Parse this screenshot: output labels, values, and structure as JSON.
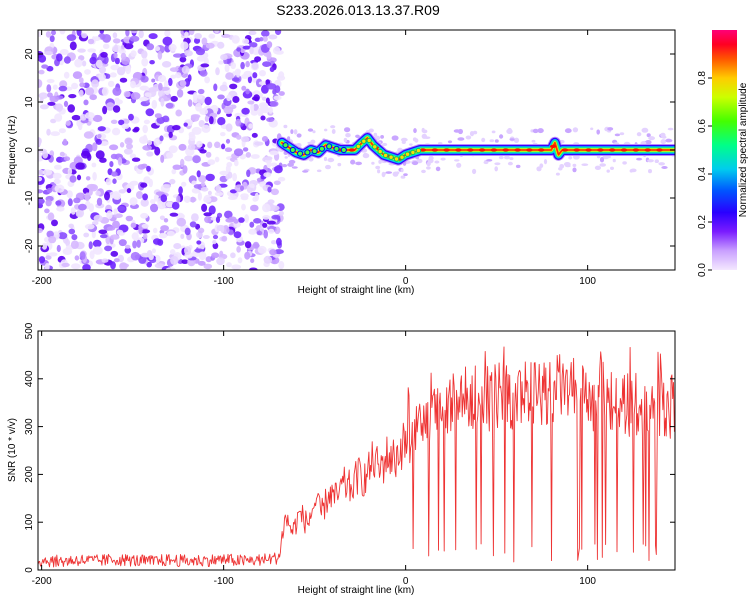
{
  "figure": {
    "title": "S233.2026.013.13.37.R09"
  },
  "chart_data": [
    {
      "type": "heatmap",
      "xlabel": "Height of straight line (km)",
      "ylabel": "Frequency (Hz)",
      "xlim": [
        -202,
        148
      ],
      "ylim": [
        -25,
        25
      ],
      "x_ticks": [
        -200,
        -100,
        0,
        100
      ],
      "y_ticks": [
        -20,
        -10,
        0,
        10,
        20
      ],
      "colorbar": {
        "label": "Normalized spectral amplitude",
        "range": [
          0,
          1
        ],
        "ticks": [
          0.0,
          0.2,
          0.4,
          0.6,
          0.8
        ],
        "colormap": [
          "#ffffff",
          "#cc99ff",
          "#6600ff",
          "#0000ff",
          "#00ccff",
          "#00ff66",
          "#66ff00",
          "#ffff00",
          "#ff6600",
          "#ff0000",
          "#ff0066",
          "#ff0099"
        ]
      },
      "noise_region_x": [
        -202,
        -68
      ],
      "ridge": {
        "x": [
          -68,
          -64,
          -60,
          -56,
          -52,
          -48,
          -44,
          -40,
          -36,
          -32,
          -28,
          -24,
          -21,
          -18,
          -15,
          -12,
          -8,
          -4,
          0,
          4,
          8,
          14,
          20,
          30,
          40,
          50,
          60,
          70,
          80,
          82,
          84,
          86,
          90,
          100,
          110,
          120,
          130,
          140,
          148
        ],
        "y": [
          1.5,
          0.5,
          -0.5,
          -1.0,
          0.0,
          -0.5,
          1.0,
          0.5,
          0.0,
          0.0,
          0.0,
          1.5,
          2.5,
          1.0,
          0.0,
          -1.0,
          -1.5,
          -2.0,
          -1.0,
          -0.5,
          0.0,
          0.0,
          0.0,
          0.0,
          0.0,
          0.0,
          0.0,
          0.0,
          0.0,
          1.5,
          -1.0,
          0.0,
          0.0,
          0.0,
          0.0,
          0.0,
          0.0,
          0.0,
          0.0
        ]
      }
    },
    {
      "type": "line",
      "xlabel": "Height of straight line (km)",
      "ylabel": "SNR (10 * v/v)",
      "xlim": [
        -202,
        148
      ],
      "ylim": [
        0,
        500
      ],
      "x_ticks": [
        -200,
        -100,
        0,
        100
      ],
      "y_ticks": [
        0,
        100,
        200,
        300,
        400,
        500
      ],
      "color": "#ee3333",
      "series": [
        {
          "x": [
            -200,
            -190,
            -180,
            -170,
            -160,
            -150,
            -140,
            -130,
            -120,
            -110,
            -100,
            -90,
            -80,
            -70,
            -66,
            -62,
            -58,
            -54,
            -50,
            -46,
            -42,
            -38,
            -34,
            -30,
            -26,
            -22,
            -18,
            -14,
            -10,
            -6,
            -2,
            2,
            6,
            10,
            14,
            18,
            22,
            26,
            30,
            34,
            38,
            42,
            46,
            50,
            54,
            58,
            62,
            66,
            70,
            74,
            78,
            82,
            86,
            90,
            94,
            98,
            102,
            106,
            110,
            114,
            118,
            122,
            126,
            130,
            134,
            138,
            142,
            146
          ],
          "values": [
            20,
            18,
            21,
            19,
            22,
            20,
            18,
            21,
            19,
            20,
            22,
            19,
            21,
            25,
            110,
            80,
            120,
            95,
            140,
            120,
            160,
            150,
            180,
            170,
            200,
            190,
            230,
            210,
            240,
            230,
            260,
            270,
            290,
            310,
            320,
            330,
            340,
            350,
            355,
            360,
            365,
            370,
            360,
            365,
            370,
            360,
            365,
            370,
            365,
            370,
            375,
            380,
            385,
            380,
            370,
            365,
            360,
            355,
            350,
            355,
            350,
            345,
            350,
            345,
            340,
            345,
            350,
            340
          ]
        }
      ]
    }
  ]
}
